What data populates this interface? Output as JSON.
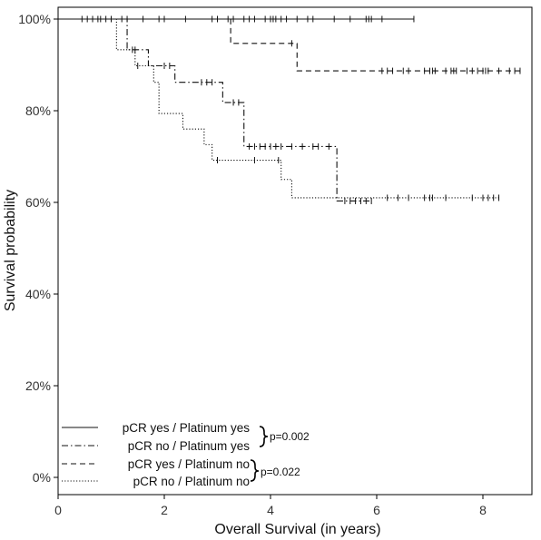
{
  "chart_data": {
    "type": "line",
    "subtype": "kaplan-meier step survival curves with censor marks",
    "xlabel": "Overall Survival (in years)",
    "ylabel": "Survival probability",
    "xlim": [
      0,
      9
    ],
    "ylim": [
      0,
      1
    ],
    "xticks": [
      0,
      2,
      4,
      6,
      8
    ],
    "yticks": [
      0,
      0.2,
      0.4,
      0.6,
      0.8,
      1.0
    ],
    "xtick_labels": [
      "0",
      "2",
      "4",
      "6",
      "8"
    ],
    "ytick_labels": [
      "0%",
      "20%",
      "40%",
      "60%",
      "80%",
      "100%"
    ],
    "grid": false,
    "legend_position": "bottom-left",
    "series": [
      {
        "name": "pCR yes / Platinum yes",
        "style": "solid",
        "end": 6.7,
        "steps": [
          [
            0,
            1.0
          ]
        ],
        "censors": [
          0.45,
          0.55,
          0.65,
          0.75,
          0.8,
          0.9,
          1.0,
          1.2,
          1.3,
          1.6,
          1.9,
          2.0,
          2.4,
          2.9,
          3.0,
          3.2,
          3.3,
          3.5,
          3.6,
          3.7,
          3.9,
          4.0,
          4.05,
          4.1,
          4.2,
          4.3,
          4.5,
          4.7,
          4.8,
          5.2,
          5.5,
          5.8,
          5.85,
          5.9,
          6.1,
          6.7
        ]
      },
      {
        "name": "pCR no / Platinum yes",
        "style": "dashdot",
        "end": 5.9,
        "steps": [
          [
            0,
            1.0
          ],
          [
            1.3,
            0.933
          ],
          [
            1.7,
            0.898
          ],
          [
            2.2,
            0.862
          ],
          [
            3.1,
            0.818
          ],
          [
            3.5,
            0.722
          ],
          [
            5.25,
            0.603
          ]
        ],
        "censors": [
          1.45,
          2.0,
          2.1,
          2.7,
          2.8,
          2.9,
          3.3,
          3.4,
          3.6,
          3.7,
          3.8,
          3.9,
          4.0,
          4.1,
          4.2,
          4.4,
          4.6,
          4.8,
          4.9,
          5.1,
          5.4,
          5.5,
          5.6,
          5.7,
          5.8,
          5.9
        ]
      },
      {
        "name": "pCR yes / Platinum no",
        "style": "dashed",
        "end": 8.7,
        "steps": [
          [
            0,
            1.0
          ],
          [
            3.25,
            0.947
          ],
          [
            4.5,
            0.887
          ]
        ],
        "censors": [
          4.4,
          6.1,
          6.2,
          6.3,
          6.5,
          6.6,
          6.9,
          7.0,
          7.05,
          7.1,
          7.3,
          7.4,
          7.45,
          7.5,
          7.7,
          7.8,
          7.9,
          8.0,
          8.05,
          8.1,
          8.3,
          8.5,
          8.6,
          8.7
        ]
      },
      {
        "name": "pCR no / Platinum no",
        "style": "dotted",
        "end": 8.3,
        "steps": [
          [
            0,
            1.0
          ],
          [
            1.1,
            0.933
          ],
          [
            1.45,
            0.898
          ],
          [
            1.8,
            0.862
          ],
          [
            1.9,
            0.794
          ],
          [
            2.35,
            0.76
          ],
          [
            2.75,
            0.726
          ],
          [
            2.9,
            0.692
          ],
          [
            4.2,
            0.65
          ],
          [
            4.4,
            0.61
          ]
        ],
        "censors": [
          1.4,
          1.5,
          3.0,
          3.7,
          4.15,
          6.2,
          6.4,
          6.6,
          6.9,
          7.0,
          7.05,
          7.3,
          7.8,
          8.0,
          8.1,
          8.2,
          8.3
        ]
      }
    ],
    "annotations": [
      "p=0.002",
      "p=0.022"
    ]
  }
}
